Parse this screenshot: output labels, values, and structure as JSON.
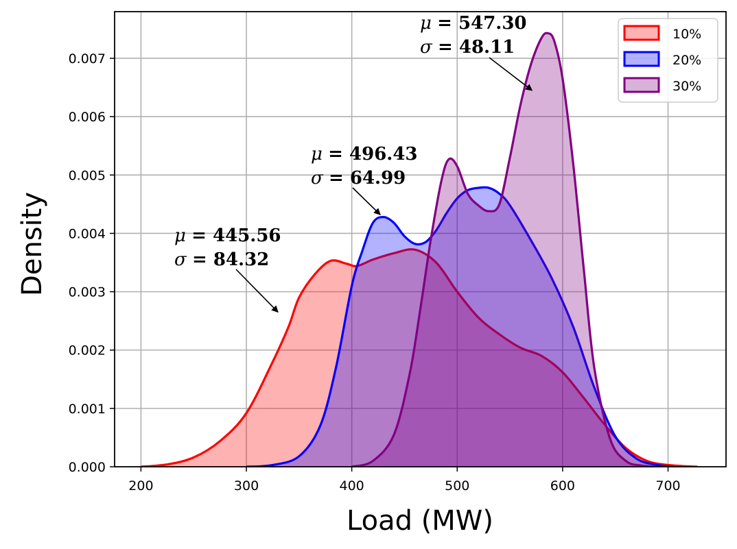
{
  "chart_data": {
    "type": "area",
    "title": "",
    "xlabel": "Load (MW)",
    "ylabel": "Density",
    "xlim": [
      175,
      755
    ],
    "ylim": [
      0,
      0.0078
    ],
    "xticks": [
      200,
      300,
      400,
      500,
      600,
      700
    ],
    "yticks": [
      0,
      0.001,
      0.002,
      0.003,
      0.004,
      0.005,
      0.006,
      0.007
    ],
    "xtick_labels": [
      "200",
      "300",
      "400",
      "500",
      "600",
      "700"
    ],
    "ytick_labels": [
      "0.000",
      "0.001",
      "0.002",
      "0.003",
      "0.004",
      "0.005",
      "0.006",
      "0.007"
    ],
    "grid": true,
    "legend_position": "top-right",
    "series": [
      {
        "name": "10%",
        "color": "#ff0000",
        "fill": "#ff0000",
        "x": [
          200,
          225,
          250,
          275,
          300,
          325,
          340,
          350,
          365,
          380,
          395,
          405,
          420,
          440,
          460,
          480,
          500,
          520,
          540,
          560,
          580,
          600,
          620,
          640,
          660,
          680,
          700,
          728
        ],
        "y": [
          0.0,
          4e-05,
          0.00016,
          0.00044,
          0.00092,
          0.0018,
          0.0024,
          0.0029,
          0.0033,
          0.00353,
          0.00348,
          0.00344,
          0.00355,
          0.00366,
          0.00372,
          0.0035,
          0.003,
          0.00256,
          0.00227,
          0.00204,
          0.0019,
          0.00162,
          0.00118,
          0.00072,
          0.00032,
          0.0001,
          3e-05,
          0.0
        ]
      },
      {
        "name": "20%",
        "color": "#0000ff",
        "fill": "#0000ff",
        "x": [
          300,
          325,
          350,
          370,
          385,
          400,
          410,
          420,
          430,
          440,
          450,
          460,
          470,
          480,
          490,
          500,
          510,
          520,
          530,
          540,
          550,
          570,
          590,
          610,
          630,
          650,
          670,
          690,
          705
        ],
        "y": [
          0.0,
          3e-05,
          0.00018,
          0.0007,
          0.0017,
          0.0031,
          0.0037,
          0.00418,
          0.00428,
          0.00418,
          0.00395,
          0.00382,
          0.00385,
          0.00405,
          0.00435,
          0.0046,
          0.00474,
          0.00478,
          0.00478,
          0.00468,
          0.00448,
          0.00388,
          0.00322,
          0.0024,
          0.00136,
          0.00052,
          0.00014,
          3e-05,
          0.0
        ]
      },
      {
        "name": "30%",
        "color": "#800080",
        "fill": "#800080",
        "x": [
          400,
          420,
          440,
          455,
          465,
          475,
          485,
          492,
          500,
          510,
          520,
          530,
          540,
          550,
          560,
          570,
          580,
          586,
          592,
          600,
          610,
          620,
          630,
          645,
          660,
          675,
          690
        ],
        "y": [
          0.0,
          0.0001,
          0.00055,
          0.0016,
          0.0027,
          0.0039,
          0.0049,
          0.00527,
          0.00515,
          0.00468,
          0.00448,
          0.00438,
          0.0045,
          0.0053,
          0.0062,
          0.0069,
          0.00735,
          0.00743,
          0.0073,
          0.00665,
          0.0052,
          0.0034,
          0.0017,
          0.00048,
          0.0001,
          2e-05,
          0.0
        ]
      }
    ],
    "annotations": [
      {
        "mu_symbol": "μ",
        "mu_text": "= 445.56",
        "sigma_symbol": "σ",
        "sigma_text": "= 84.32",
        "target": [
          330,
          0.00265
        ]
      },
      {
        "mu_symbol": "μ",
        "mu_text": "= 496.43",
        "sigma_symbol": "σ",
        "sigma_text": "= 64.99",
        "target": [
          427,
          0.00432
        ]
      },
      {
        "mu_symbol": "μ",
        "mu_text": "= 547.30",
        "sigma_symbol": "σ",
        "sigma_text": "= 48.11",
        "target": [
          571,
          0.00645
        ]
      }
    ]
  }
}
